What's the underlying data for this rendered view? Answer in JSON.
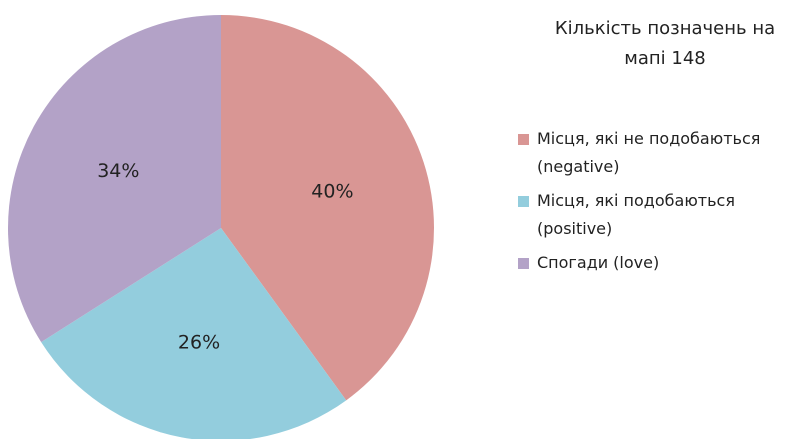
{
  "chart_data": {
    "type": "pie",
    "title": "Кількість позначень на мапі 148",
    "categories": [
      "Місця, які не подобаються (negative)",
      "Місця, які подобаються (positive)",
      "Спогади (love)"
    ],
    "values": [
      40,
      26,
      34
    ],
    "value_labels": [
      "40%",
      "26%",
      "34%"
    ],
    "colors": [
      "#d99694",
      "#93cddd",
      "#b3a2c7"
    ],
    "legend": "right"
  }
}
